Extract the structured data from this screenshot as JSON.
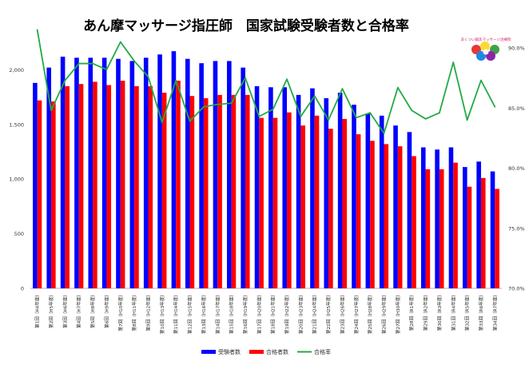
{
  "title": "あん摩マッサージ指圧師　国家試験受験者数と合格率",
  "logo": {
    "text": "あくつい鍼灸マッサージ治療院"
  },
  "colors": {
    "examinees": "#0000ff",
    "passers": "#ff0000",
    "rate": "#22aa44",
    "background": "#ffffff"
  },
  "chart_data": {
    "type": "bar",
    "categories": [
      "第1回（H4年度）",
      "第2回（H5年度）",
      "第3回（H6年度）",
      "第4回（H7年度）",
      "第5回（H8年度）",
      "第6回（H9年度）",
      "第7回（H10年度）",
      "第8回（H11年度）",
      "第9回（H12年度）",
      "第10回（H13年度）",
      "第11回（H14年度）",
      "第12回（H15年度）",
      "第13回（H16年度）",
      "第14回（H17年度）",
      "第15回（H18年度）",
      "第16回（H19年度）",
      "第17回（H20年度）",
      "第18回（H21年度）",
      "第19回（H22年度）",
      "第20回（H23年度）",
      "第21回（H24年度）",
      "第22回（H25年度）",
      "第23回（H26年度）",
      "第24回（H27年度）",
      "第25回（H28年度）",
      "第26回（H29年度）",
      "第27回（H30年度）",
      "第28回（R1年度）",
      "第29回（R2年度）",
      "第30回（R3年度）",
      "第31回（R4年度）",
      "第32回（R5年度）",
      "第33回（R6年度）",
      "第34回（R7年度）"
    ],
    "series": [
      {
        "name": "受験者数",
        "axis": "left",
        "kind": "bar",
        "values": [
          1880,
          2020,
          2120,
          2110,
          2110,
          2110,
          2100,
          2080,
          2110,
          2140,
          2170,
          2100,
          2060,
          2080,
          2080,
          2020,
          1850,
          1840,
          1840,
          1770,
          1830,
          1740,
          1790,
          1680,
          1600,
          1580,
          1490,
          1430,
          1290,
          1270,
          1290,
          1110,
          1160,
          1070
        ]
      },
      {
        "name": "合格者数",
        "axis": "left",
        "kind": "bar",
        "values": [
          1720,
          1710,
          1850,
          1870,
          1890,
          1860,
          1900,
          1850,
          1850,
          1790,
          1900,
          1760,
          1740,
          1770,
          1770,
          1770,
          1560,
          1560,
          1610,
          1490,
          1580,
          1460,
          1550,
          1410,
          1350,
          1320,
          1300,
          1210,
          1090,
          1090,
          1150,
          930,
          1010,
          910
        ]
      },
      {
        "name": "合格率",
        "axis": "right",
        "kind": "line",
        "values": [
          91.5,
          84.8,
          87.3,
          88.7,
          88.7,
          88.2,
          90.5,
          88.9,
          87.6,
          83.8,
          87.3,
          83.9,
          85.1,
          85.3,
          85.4,
          87.5,
          84.3,
          84.9,
          87.4,
          84.3,
          86.0,
          84.0,
          86.6,
          84.2,
          84.6,
          82.9,
          86.7,
          84.8,
          84.1,
          84.6,
          88.8,
          84.0,
          87.3,
          85.1
        ]
      }
    ],
    "y_left": {
      "min": 0,
      "max": 2200,
      "ticks": [
        "0",
        "500",
        "1,000",
        "1,500",
        "2,000"
      ],
      "tick_values": [
        0,
        500,
        1000,
        1500,
        2000
      ]
    },
    "y_right": {
      "min": 70.0,
      "max": 90.0,
      "ticks": [
        "70.0%",
        "75.0%",
        "80.0%",
        "85.0%",
        "90.0%"
      ],
      "tick_values": [
        70,
        75,
        80,
        85,
        90
      ]
    },
    "legend": {
      "position": "bottom",
      "items": [
        "受験者数",
        "合格者数",
        "合格率"
      ]
    },
    "grid": false
  }
}
